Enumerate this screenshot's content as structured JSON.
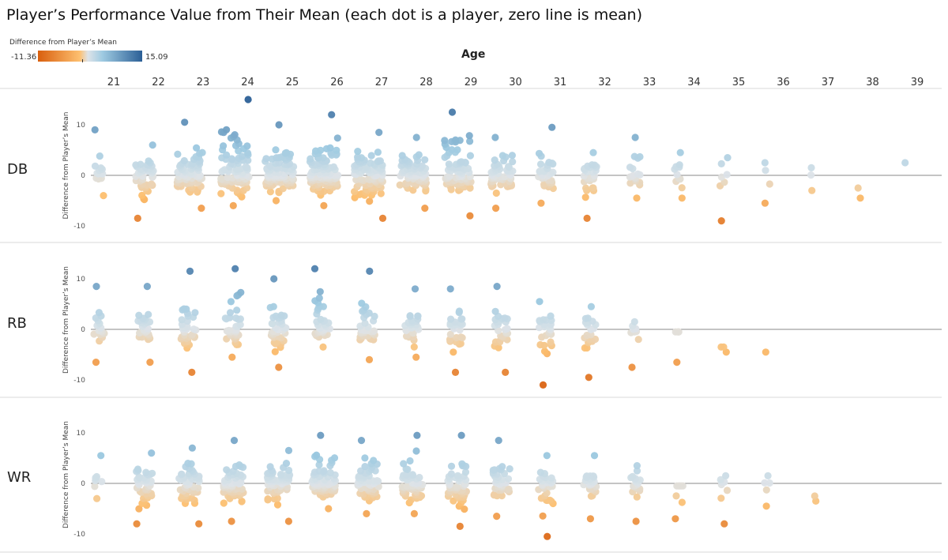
{
  "title": "Player’s Performance Value from Their Mean (each dot is a player, zero line is mean)",
  "legend": {
    "title": "Difference from Player’s Mean",
    "min_label": "-11.36",
    "max_label": "15.09",
    "min": -11.36,
    "max": 15.09,
    "colors": {
      "low": "#d95f0e",
      "mid_low": "#fdbf6f",
      "mid": "#dde3e8",
      "mid_high": "#9ecae1",
      "high": "#2b5f96"
    }
  },
  "chart_data": {
    "type": "scatter",
    "title": "Player’s Performance Value from Their Mean (each dot is a player, zero line is mean)",
    "xlabel": "Age",
    "ylabel": "Difference from Player’s Mean",
    "x_categories": [
      "21",
      "22",
      "23",
      "24",
      "25",
      "26",
      "27",
      "28",
      "29",
      "30",
      "31",
      "32",
      "33",
      "34",
      "35",
      "36",
      "37",
      "38",
      "39"
    ],
    "ylim": [
      -12.5,
      16
    ],
    "y_ticks": [
      "10",
      "0",
      "-10"
    ],
    "grid": false,
    "zero_line": true,
    "panels": [
      {
        "label": "DB",
        "age_groups": [
          {
            "age": "21",
            "max": 9,
            "min": -4,
            "count": 14
          },
          {
            "age": "22",
            "max": 6,
            "min": -8.5,
            "count": 50
          },
          {
            "age": "23",
            "max": 10.5,
            "min": -6.5,
            "count": 80
          },
          {
            "age": "24",
            "max": 15,
            "min": -6,
            "count": 100
          },
          {
            "age": "25",
            "max": 10,
            "min": -5,
            "count": 110
          },
          {
            "age": "26",
            "max": 12,
            "min": -6,
            "count": 105
          },
          {
            "age": "27",
            "max": 8.5,
            "min": -8.5,
            "count": 95
          },
          {
            "age": "28",
            "max": 7.5,
            "min": -6.5,
            "count": 85
          },
          {
            "age": "29",
            "max": 12.5,
            "min": -8,
            "count": 85
          },
          {
            "age": "30",
            "max": 7.5,
            "min": -6.5,
            "count": 65
          },
          {
            "age": "31",
            "max": 9.5,
            "min": -5.5,
            "count": 40
          },
          {
            "age": "32",
            "max": 4.5,
            "min": -8.5,
            "count": 30
          },
          {
            "age": "33",
            "max": 7.5,
            "min": -4.5,
            "count": 18
          },
          {
            "age": "34",
            "max": 4.5,
            "min": -4.5,
            "count": 12
          },
          {
            "age": "35",
            "max": 3.5,
            "min": -9,
            "count": 7
          },
          {
            "age": "36",
            "max": 2.5,
            "min": -5.5,
            "count": 4
          },
          {
            "age": "37",
            "max": 1.5,
            "min": -3,
            "count": 3
          },
          {
            "age": "38",
            "max": -2.5,
            "min": -4.5,
            "count": 2
          },
          {
            "age": "39",
            "max": 2.5,
            "min": 2.5,
            "count": 1
          }
        ]
      },
      {
        "label": "RB",
        "age_groups": [
          {
            "age": "21",
            "max": 8.5,
            "min": -6.5,
            "count": 18
          },
          {
            "age": "22",
            "max": 8.5,
            "min": -6.5,
            "count": 28
          },
          {
            "age": "23",
            "max": 11.5,
            "min": -8.5,
            "count": 40
          },
          {
            "age": "24",
            "max": 12,
            "min": -5.5,
            "count": 42
          },
          {
            "age": "25",
            "max": 10,
            "min": -7.5,
            "count": 40
          },
          {
            "age": "26",
            "max": 12,
            "min": -3.5,
            "count": 40
          },
          {
            "age": "27",
            "max": 11.5,
            "min": -6,
            "count": 38
          },
          {
            "age": "28",
            "max": 8,
            "min": -5.5,
            "count": 30
          },
          {
            "age": "29",
            "max": 8,
            "min": -8.5,
            "count": 28
          },
          {
            "age": "30",
            "max": 8.5,
            "min": -8.5,
            "count": 30
          },
          {
            "age": "31",
            "max": 5.5,
            "min": -11,
            "count": 28
          },
          {
            "age": "32",
            "max": 4.5,
            "min": -9.5,
            "count": 22
          },
          {
            "age": "33",
            "max": 1.5,
            "min": -7.5,
            "count": 10
          },
          {
            "age": "34",
            "max": -0.5,
            "min": -6.5,
            "count": 5
          },
          {
            "age": "35",
            "max": -3.5,
            "min": -4.5,
            "count": 3
          },
          {
            "age": "36",
            "max": -4.5,
            "min": -4.5,
            "count": 1
          }
        ]
      },
      {
        "label": "WR",
        "age_groups": [
          {
            "age": "21",
            "max": 5.5,
            "min": -3,
            "count": 8
          },
          {
            "age": "22",
            "max": 6,
            "min": -8,
            "count": 45
          },
          {
            "age": "23",
            "max": 7,
            "min": -8,
            "count": 60
          },
          {
            "age": "24",
            "max": 8.5,
            "min": -7.5,
            "count": 62
          },
          {
            "age": "25",
            "max": 6.5,
            "min": -7.5,
            "count": 70
          },
          {
            "age": "26",
            "max": 9.5,
            "min": -5,
            "count": 75
          },
          {
            "age": "27",
            "max": 8.5,
            "min": -6,
            "count": 65
          },
          {
            "age": "28",
            "max": 9.5,
            "min": -6,
            "count": 60
          },
          {
            "age": "29",
            "max": 9.5,
            "min": -8.5,
            "count": 55
          },
          {
            "age": "30",
            "max": 8.5,
            "min": -6.5,
            "count": 45
          },
          {
            "age": "31",
            "max": 5.5,
            "min": -10.5,
            "count": 35
          },
          {
            "age": "32",
            "max": 5.5,
            "min": -7,
            "count": 30
          },
          {
            "age": "33",
            "max": 3.5,
            "min": -7.5,
            "count": 20
          },
          {
            "age": "34",
            "max": -0.5,
            "min": -7,
            "count": 8
          },
          {
            "age": "35",
            "max": 1.5,
            "min": -8,
            "count": 8
          },
          {
            "age": "36",
            "max": 1.5,
            "min": -4.5,
            "count": 5
          },
          {
            "age": "37",
            "max": -2.5,
            "min": -3.5,
            "count": 2
          }
        ]
      }
    ]
  }
}
